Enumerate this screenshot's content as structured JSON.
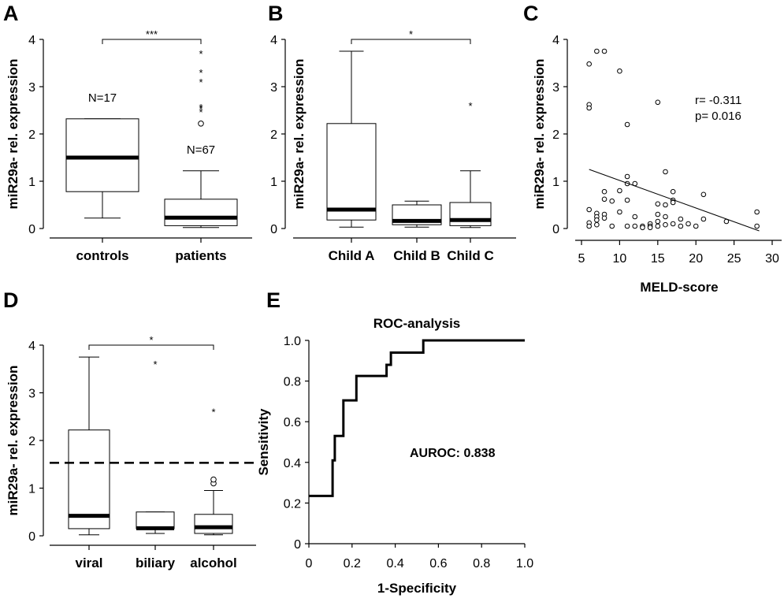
{
  "panels": {
    "A": {
      "letter": "A"
    },
    "B": {
      "letter": "B"
    },
    "C": {
      "letter": "C"
    },
    "D": {
      "letter": "D"
    },
    "E": {
      "letter": "E"
    }
  },
  "chart_data": [
    {
      "id": "A",
      "type": "box",
      "ylabel": "miR29a- rel. expression",
      "ylim": [
        0,
        4
      ],
      "yticks": [
        0,
        1,
        2,
        3,
        4
      ],
      "categories": [
        "controls",
        "patients"
      ],
      "boxes": [
        {
          "min": 0.22,
          "q1": 0.78,
          "median": 1.5,
          "q3": 2.32,
          "max": 2.32,
          "n_label": "N=17",
          "outliers": [],
          "extremes": []
        },
        {
          "min": 0.02,
          "q1": 0.06,
          "median": 0.23,
          "q3": 0.62,
          "max": 1.22,
          "n_label": "N=67",
          "outliers": [
            2.22
          ],
          "extremes": [
            2.52,
            2.58,
            2.62,
            3.15,
            3.35,
            3.75
          ]
        }
      ],
      "significance": {
        "from": 0,
        "to": 1,
        "label": "***",
        "y": 4.0
      }
    },
    {
      "id": "B",
      "type": "box",
      "ylabel": "miR29a- rel. expression",
      "ylim": [
        0,
        4
      ],
      "yticks": [
        0,
        1,
        2,
        3,
        4
      ],
      "categories": [
        "Child A",
        "Child B",
        "Child C"
      ],
      "boxes": [
        {
          "min": 0.03,
          "q1": 0.18,
          "median": 0.4,
          "q3": 2.22,
          "max": 3.75,
          "outliers": [],
          "extremes": []
        },
        {
          "min": 0.03,
          "q1": 0.08,
          "median": 0.16,
          "q3": 0.5,
          "max": 0.58,
          "outliers": [],
          "extremes": []
        },
        {
          "min": 0.02,
          "q1": 0.06,
          "median": 0.18,
          "q3": 0.55,
          "max": 1.22,
          "outliers": [],
          "extremes": [
            2.65
          ]
        }
      ],
      "significance": {
        "from": 0,
        "to": 2,
        "label": "*",
        "y": 4.0
      }
    },
    {
      "id": "C",
      "type": "scatter",
      "xlabel": "MELD-score",
      "ylabel": "miR29a- rel. expression",
      "xlim": [
        4,
        31
      ],
      "ylim": [
        -0.1,
        4.1
      ],
      "xticks": [
        5,
        10,
        15,
        20,
        25,
        30
      ],
      "yticks": [
        0,
        1,
        2,
        3,
        4
      ],
      "annotation": [
        "r= -0.311",
        "p= 0.016"
      ],
      "trendline": {
        "x": [
          6,
          28.3
        ],
        "y": [
          1.25,
          -0.05
        ]
      },
      "points": [
        [
          6,
          3.48
        ],
        [
          6,
          2.62
        ],
        [
          6,
          2.55
        ],
        [
          7,
          3.75
        ],
        [
          8,
          3.75
        ],
        [
          10,
          3.33
        ],
        [
          11,
          2.2
        ],
        [
          15,
          2.67
        ],
        [
          6,
          0.4
        ],
        [
          6,
          0.12
        ],
        [
          6,
          0.05
        ],
        [
          7,
          0.32
        ],
        [
          7,
          0.25
        ],
        [
          7,
          0.18
        ],
        [
          7,
          0.08
        ],
        [
          8,
          0.3
        ],
        [
          8,
          0.22
        ],
        [
          8,
          0.78
        ],
        [
          8,
          0.62
        ],
        [
          9,
          0.58
        ],
        [
          10,
          0.8
        ],
        [
          10,
          0.35
        ],
        [
          11,
          1.1
        ],
        [
          11,
          0.95
        ],
        [
          11,
          0.6
        ],
        [
          11,
          0.05
        ],
        [
          12,
          0.95
        ],
        [
          12,
          0.25
        ],
        [
          12,
          0.05
        ],
        [
          13,
          0.05
        ],
        [
          13,
          0.02
        ],
        [
          14,
          0.1
        ],
        [
          14,
          0.05
        ],
        [
          14,
          0.02
        ],
        [
          15,
          0.3
        ],
        [
          15,
          0.15
        ],
        [
          15,
          0.05
        ],
        [
          15,
          0.52
        ],
        [
          16,
          1.2
        ],
        [
          16,
          0.5
        ],
        [
          16,
          0.25
        ],
        [
          16,
          0.08
        ],
        [
          17,
          0.6
        ],
        [
          17,
          0.55
        ],
        [
          17,
          0.78
        ],
        [
          18,
          0.2
        ],
        [
          18,
          0.05
        ],
        [
          19,
          0.1
        ],
        [
          20,
          0.05
        ],
        [
          21,
          0.72
        ],
        [
          21,
          0.2
        ],
        [
          24,
          0.15
        ],
        [
          28,
          0.35
        ],
        [
          28,
          0.05
        ],
        [
          9,
          0.05
        ],
        [
          17,
          0.1
        ]
      ]
    },
    {
      "id": "D",
      "type": "box",
      "ylabel": "miR29a- rel. expression",
      "ylim": [
        0,
        4
      ],
      "yticks": [
        0,
        1,
        2,
        3,
        4
      ],
      "categories": [
        "viral",
        "biliary",
        "alcohol"
      ],
      "boxes": [
        {
          "min": 0.02,
          "q1": 0.15,
          "median": 0.42,
          "q3": 2.22,
          "max": 3.75,
          "outliers": [],
          "extremes": []
        },
        {
          "min": 0.05,
          "q1": 0.15,
          "median": 0.16,
          "q3": 0.5,
          "max": 0.5,
          "outliers": [],
          "extremes": [
            3.65
          ]
        },
        {
          "min": 0.02,
          "q1": 0.05,
          "median": 0.18,
          "q3": 0.45,
          "max": 0.95,
          "outliers": [
            1.1,
            1.18
          ],
          "extremes": [
            2.65
          ]
        }
      ],
      "significance": {
        "from": 0,
        "to": 2,
        "label": "*",
        "y": 4.0
      },
      "cutoff_line": 1.53
    },
    {
      "id": "E",
      "type": "line",
      "title": "ROC-analysis",
      "xlabel": "1-Specificity",
      "ylabel": "Sensitivity",
      "xlim": [
        0,
        1
      ],
      "ylim": [
        0,
        1
      ],
      "xticks": [
        "0",
        "0.2",
        "0.4",
        "0.6",
        "0.8",
        "1.0"
      ],
      "yticks": [
        "0",
        "0.2",
        "0.4",
        "0.6",
        "0.8",
        "1.0"
      ],
      "annotation": "AUROC: 0.838",
      "curve": {
        "x": [
          0,
          0.11,
          0.11,
          0.12,
          0.12,
          0.16,
          0.16,
          0.22,
          0.22,
          0.36,
          0.36,
          0.38,
          0.38,
          0.4,
          0.4,
          0.53,
          0.53,
          1.0
        ],
        "y": [
          0.235,
          0.235,
          0.41,
          0.41,
          0.53,
          0.53,
          0.705,
          0.705,
          0.825,
          0.825,
          0.88,
          0.88,
          0.94,
          0.94,
          0.94,
          0.94,
          1.0,
          1.0
        ]
      }
    }
  ]
}
